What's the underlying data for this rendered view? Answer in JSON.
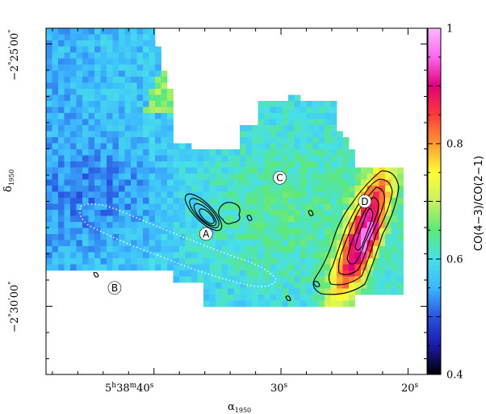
{
  "chart_data": {
    "type": "heatmap",
    "title": "",
    "x_axis": {
      "label": "α1950",
      "label_main": "α",
      "label_sub": "1950",
      "ticks": [
        {
          "main": "5",
          "sup1": "h",
          "mid": "38",
          "sup2": "m",
          "end": "40",
          "sup3": "s",
          "ra_sec": 40
        },
        {
          "main": "30",
          "sup1": "s",
          "ra_sec": 30
        },
        {
          "main": "20",
          "sup1": "s",
          "ra_sec": 20
        }
      ],
      "range_sec": [
        48.5,
        18.5
      ]
    },
    "y_axis": {
      "label": "δ1950",
      "label_main": "δ",
      "label_sub": "1950",
      "ticks": [
        {
          "deg": "−2",
          "sup_deg": "°",
          "min": "25",
          "sup_min": "'",
          "sec": "00",
          "sup_sec": "\"",
          "arcmin": -25
        },
        {
          "deg": "−2",
          "sup_deg": "°",
          "min": "30",
          "sup_min": "'",
          "sec": "00",
          "sup_sec": "\"",
          "arcmin": -30
        }
      ],
      "range_arcmin": [
        -24.7,
        -31.3
      ]
    },
    "colorbar": {
      "label": "CO(4−3)/CO(2−1)",
      "min": 0.4,
      "max": 1.0,
      "tick_labels": [
        "0.4",
        "0.6",
        "0.8",
        "1"
      ],
      "tick_values": [
        0.4,
        0.6,
        0.8,
        1.0
      ],
      "colors": [
        "#000000",
        "#1a1aa8",
        "#2a52e0",
        "#3cb8ff",
        "#48e0e8",
        "#5ce87a",
        "#c8f060",
        "#ffff33",
        "#ff9a33",
        "#ff3a3a",
        "#e0007a",
        "#ff66ee",
        "#ffb8ff"
      ]
    },
    "markers": [
      {
        "label": "A",
        "ra_sec": 35.9,
        "dec_arcmin": -28.62
      },
      {
        "label": "B",
        "ra_sec": 43.1,
        "dec_arcmin": -29.65
      },
      {
        "label": "C",
        "ra_sec": 30.1,
        "dec_arcmin": -27.55
      },
      {
        "label": "D",
        "ra_sec": 23.4,
        "dec_arcmin": -28.0
      }
    ]
  }
}
